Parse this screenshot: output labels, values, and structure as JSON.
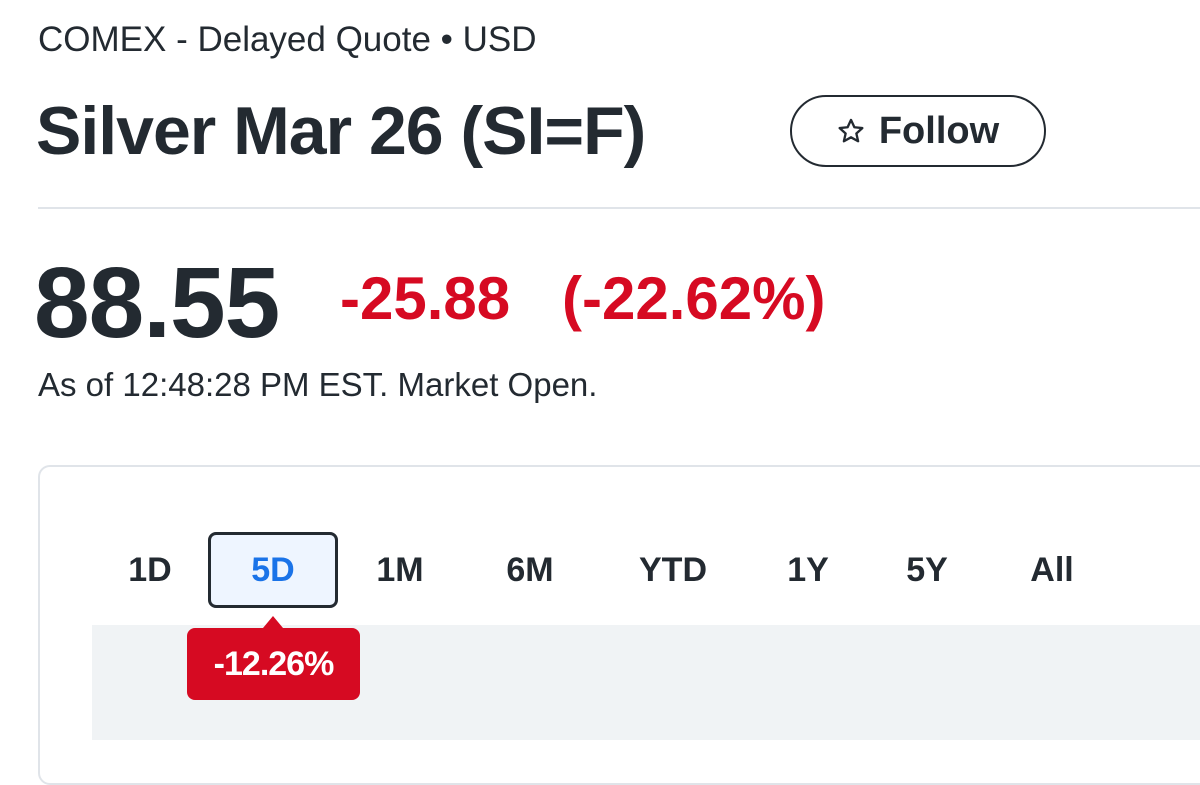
{
  "header": {
    "exchange_line": "COMEX - Delayed Quote • USD",
    "title": "Silver Mar 26 (SI=F)",
    "follow_button": "Follow"
  },
  "quote": {
    "price": "88.55",
    "change": "-25.88",
    "change_percent": "(-22.62%)",
    "market_status": "As of 12:48:28 PM EST. Market Open."
  },
  "chart_panel": {
    "range_tabs": [
      "1D",
      "5D",
      "1M",
      "6M",
      "YTD",
      "1Y",
      "5Y",
      "All"
    ],
    "range_change": "-12.26%"
  }
}
